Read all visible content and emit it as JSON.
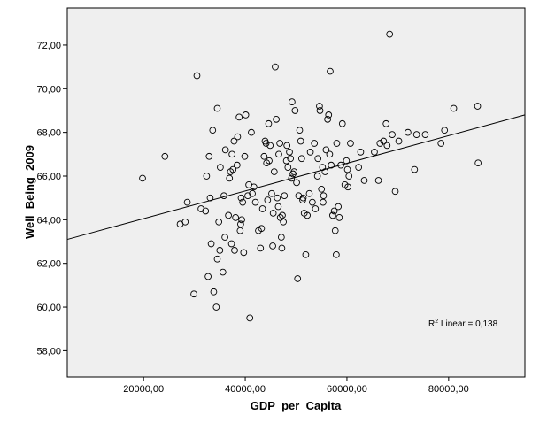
{
  "chart_data": {
    "type": "scatter",
    "xlabel": "GDP_per_Capita",
    "ylabel": "Well_Being_2009",
    "xlim": [
      5000,
      95000
    ],
    "ylim": [
      56.8,
      73.7
    ],
    "xticks": [
      20000,
      40000,
      60000,
      80000
    ],
    "xtick_labels": [
      "20000,00",
      "40000,00",
      "60000,00",
      "80000,00"
    ],
    "yticks": [
      58,
      60,
      62,
      64,
      66,
      68,
      70,
      72
    ],
    "ytick_labels": [
      "58,00",
      "60,00",
      "62,00",
      "64,00",
      "66,00",
      "68,00",
      "70,00",
      "72,00"
    ],
    "grid": false,
    "plot_background": "#efefef",
    "marker": "open-circle",
    "fit_line": {
      "type": "linear",
      "x": [
        5000,
        95000
      ],
      "y": [
        63.1,
        68.8
      ]
    },
    "annotation": {
      "prefix": "R",
      "superscript": "2",
      "suffix": " Linear = 0,138",
      "position": "bottom-right"
    },
    "points": [
      [
        19800,
        65.9
      ],
      [
        24200,
        66.9
      ],
      [
        27200,
        63.8
      ],
      [
        28200,
        63.9
      ],
      [
        28600,
        64.8
      ],
      [
        29900,
        60.6
      ],
      [
        30500,
        70.6
      ],
      [
        31300,
        64.5
      ],
      [
        32200,
        64.4
      ],
      [
        32400,
        66.0
      ],
      [
        32700,
        61.4
      ],
      [
        33100,
        65.0
      ],
      [
        32900,
        66.9
      ],
      [
        33300,
        62.9
      ],
      [
        33600,
        68.1
      ],
      [
        33800,
        60.7
      ],
      [
        34300,
        60.0
      ],
      [
        34500,
        62.2
      ],
      [
        34500,
        69.1
      ],
      [
        34800,
        63.9
      ],
      [
        35000,
        62.6
      ],
      [
        35100,
        66.4
      ],
      [
        35600,
        61.6
      ],
      [
        35800,
        65.1
      ],
      [
        36000,
        63.2
      ],
      [
        36100,
        67.2
      ],
      [
        36700,
        64.2
      ],
      [
        36900,
        65.9
      ],
      [
        37100,
        66.2
      ],
      [
        37300,
        62.9
      ],
      [
        37400,
        67.0
      ],
      [
        37600,
        66.3
      ],
      [
        37800,
        67.6
      ],
      [
        37900,
        62.6
      ],
      [
        38100,
        64.1
      ],
      [
        38400,
        66.5
      ],
      [
        38500,
        67.8
      ],
      [
        38800,
        68.7
      ],
      [
        39000,
        63.5
      ],
      [
        39100,
        63.8
      ],
      [
        39200,
        65.0
      ],
      [
        39300,
        64.0
      ],
      [
        39500,
        64.8
      ],
      [
        39700,
        62.5
      ],
      [
        39900,
        66.9
      ],
      [
        40100,
        68.8
      ],
      [
        40500,
        65.1
      ],
      [
        40700,
        65.6
      ],
      [
        40900,
        59.5
      ],
      [
        41200,
        68.0
      ],
      [
        41400,
        65.2
      ],
      [
        41700,
        65.5
      ],
      [
        42000,
        64.8
      ],
      [
        42600,
        63.5
      ],
      [
        43000,
        62.7
      ],
      [
        43200,
        63.6
      ],
      [
        43400,
        64.5
      ],
      [
        43700,
        66.9
      ],
      [
        43900,
        67.6
      ],
      [
        44100,
        67.5
      ],
      [
        44200,
        66.6
      ],
      [
        44400,
        64.9
      ],
      [
        44600,
        68.4
      ],
      [
        44700,
        66.7
      ],
      [
        44900,
        67.4
      ],
      [
        45200,
        65.2
      ],
      [
        45400,
        62.8
      ],
      [
        45500,
        64.3
      ],
      [
        45700,
        66.2
      ],
      [
        45900,
        71.0
      ],
      [
        46100,
        68.6
      ],
      [
        46300,
        65.0
      ],
      [
        46500,
        64.6
      ],
      [
        46600,
        67.0
      ],
      [
        46800,
        67.5
      ],
      [
        46900,
        64.1
      ],
      [
        47100,
        63.2
      ],
      [
        47200,
        62.7
      ],
      [
        47300,
        64.2
      ],
      [
        47500,
        63.9
      ],
      [
        47700,
        65.1
      ],
      [
        48100,
        66.7
      ],
      [
        48200,
        67.4
      ],
      [
        48400,
        66.4
      ],
      [
        48700,
        67.1
      ],
      [
        48900,
        66.8
      ],
      [
        49100,
        65.9
      ],
      [
        49200,
        69.4
      ],
      [
        49400,
        66.1
      ],
      [
        49600,
        66.2
      ],
      [
        49800,
        69.0
      ],
      [
        50100,
        65.7
      ],
      [
        50300,
        61.3
      ],
      [
        50500,
        65.1
      ],
      [
        50700,
        68.1
      ],
      [
        50900,
        67.6
      ],
      [
        51100,
        66.8
      ],
      [
        51300,
        64.9
      ],
      [
        51400,
        65.0
      ],
      [
        51600,
        64.3
      ],
      [
        51900,
        62.4
      ],
      [
        52200,
        64.2
      ],
      [
        52600,
        65.2
      ],
      [
        52800,
        67.1
      ],
      [
        53200,
        64.8
      ],
      [
        53600,
        67.5
      ],
      [
        53800,
        64.5
      ],
      [
        54200,
        66.0
      ],
      [
        54300,
        66.8
      ],
      [
        54600,
        69.2
      ],
      [
        54700,
        69.0
      ],
      [
        55000,
        65.4
      ],
      [
        55200,
        66.4
      ],
      [
        55300,
        64.8
      ],
      [
        55400,
        65.1
      ],
      [
        55700,
        66.2
      ],
      [
        55900,
        67.2
      ],
      [
        56200,
        68.6
      ],
      [
        56400,
        68.8
      ],
      [
        56600,
        67.0
      ],
      [
        56700,
        70.8
      ],
      [
        56900,
        66.5
      ],
      [
        57200,
        64.2
      ],
      [
        57500,
        64.4
      ],
      [
        57700,
        63.5
      ],
      [
        57900,
        62.4
      ],
      [
        58000,
        67.5
      ],
      [
        58300,
        64.6
      ],
      [
        58500,
        64.1
      ],
      [
        58800,
        66.5
      ],
      [
        59100,
        68.4
      ],
      [
        59600,
        65.6
      ],
      [
        59900,
        66.7
      ],
      [
        60100,
        66.3
      ],
      [
        60200,
        65.5
      ],
      [
        60400,
        66.0
      ],
      [
        60700,
        67.5
      ],
      [
        62300,
        66.4
      ],
      [
        62700,
        67.1
      ],
      [
        63400,
        65.8
      ],
      [
        65400,
        67.1
      ],
      [
        66200,
        65.8
      ],
      [
        66500,
        67.5
      ],
      [
        67200,
        67.6
      ],
      [
        67700,
        68.4
      ],
      [
        67900,
        67.4
      ],
      [
        68400,
        72.5
      ],
      [
        68900,
        67.9
      ],
      [
        69500,
        65.3
      ],
      [
        70200,
        67.6
      ],
      [
        72000,
        68.0
      ],
      [
        73300,
        66.3
      ],
      [
        73700,
        67.9
      ],
      [
        75400,
        67.9
      ],
      [
        78500,
        67.5
      ],
      [
        79200,
        68.1
      ],
      [
        81000,
        69.1
      ],
      [
        85700,
        69.2
      ],
      [
        85800,
        66.6
      ]
    ]
  }
}
